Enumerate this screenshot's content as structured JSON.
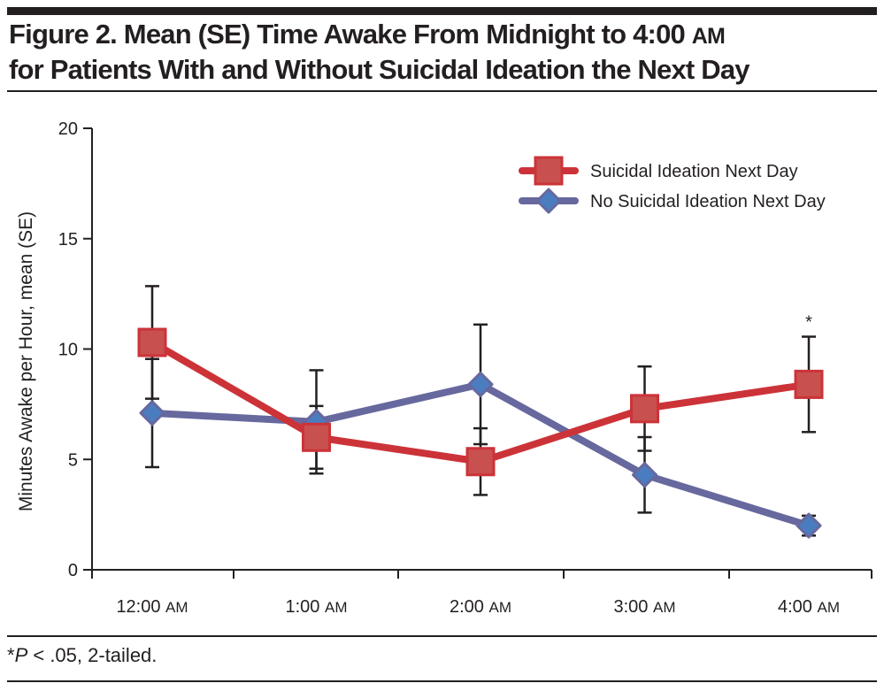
{
  "figure": {
    "title_line1": "Figure 2. Mean (SE) Time Awake From Midnight to 4:00",
    "title_line1_sc": "AM",
    "title_line2": "for Patients With and Without Suicidal Ideation the Next Day",
    "footnote_star": "*",
    "footnote_p": "P",
    "footnote_rest": " < .05, 2-tailed."
  },
  "chart_data": {
    "type": "line",
    "title": "Mean (SE) Time Awake From Midnight to 4:00 AM for Patients With and Without Suicidal Ideation the Next Day",
    "xlabel": "",
    "ylabel": "Minutes Awake per Hour, mean (SE)",
    "ylim": [
      0,
      20
    ],
    "yticks": [
      0,
      5,
      10,
      15,
      20
    ],
    "categories": [
      "12:00 AM",
      "1:00 AM",
      "2:00 AM",
      "3:00 AM",
      "4:00 AM"
    ],
    "category_parts": [
      {
        "time": "12:00",
        "ampm": "AM"
      },
      {
        "time": "1:00",
        "ampm": "AM"
      },
      {
        "time": "2:00",
        "ampm": "AM"
      },
      {
        "time": "3:00",
        "ampm": "AM"
      },
      {
        "time": "4:00",
        "ampm": "AM"
      }
    ],
    "grid": false,
    "legend_position": "top-right",
    "series": [
      {
        "name": "Suicidal Ideation Next Day",
        "marker": "square",
        "line_color": "#cc3338",
        "marker_color": "#c8504f",
        "values": [
          10.3,
          6.0,
          4.9,
          7.3,
          8.4
        ],
        "se": [
          2.55,
          1.42,
          1.51,
          1.91,
          2.16
        ]
      },
      {
        "name": "No Suicidal Ideation Next Day",
        "marker": "diamond",
        "line_color": "#66689e",
        "marker_color": "#4a7dc0",
        "values": [
          7.1,
          6.7,
          8.4,
          4.3,
          2.0
        ],
        "se": [
          2.45,
          2.34,
          2.71,
          1.71,
          0.45
        ]
      }
    ],
    "annotations": [
      {
        "category": "4:00 AM",
        "text": "*",
        "note": "significant difference"
      }
    ]
  }
}
